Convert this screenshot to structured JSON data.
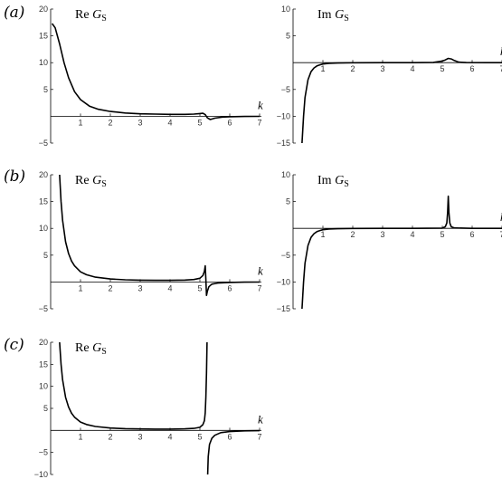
{
  "rows": [
    {
      "label": "(a)"
    },
    {
      "label": "(b)"
    },
    {
      "label": "(c)"
    }
  ],
  "title_parts": {
    "re": {
      "prefix": "Re",
      "symbol": "G",
      "sub": "S"
    },
    "im": {
      "prefix": "Im",
      "symbol": "G",
      "sub": "S"
    }
  },
  "chart_data": [
    {
      "id": "a-re",
      "row": 0,
      "col": 0,
      "type": "line",
      "title": "Re G_S",
      "xlabel": "k",
      "xlim": [
        0,
        7
      ],
      "ylim": [
        -5,
        20
      ],
      "xticks": [
        1,
        2,
        3,
        4,
        5,
        6,
        7
      ],
      "yticks": [
        20,
        15,
        10,
        5,
        -5
      ],
      "x": [
        0.05,
        0.15,
        0.3,
        0.45,
        0.6,
        0.8,
        1.0,
        1.3,
        1.6,
        2.0,
        2.5,
        3.0,
        3.5,
        4.0,
        4.5,
        4.8,
        5.0,
        5.1,
        5.18,
        5.25,
        5.35,
        5.5,
        5.75,
        6.0,
        6.5,
        7.0
      ],
      "y": [
        17.3,
        16.5,
        13.5,
        10.0,
        7.2,
        4.6,
        3.1,
        1.9,
        1.3,
        0.9,
        0.6,
        0.45,
        0.4,
        0.35,
        0.35,
        0.4,
        0.5,
        0.55,
        0.3,
        -0.3,
        -0.6,
        -0.35,
        -0.15,
        -0.08,
        -0.04,
        -0.02
      ]
    },
    {
      "id": "a-im",
      "row": 0,
      "col": 1,
      "type": "line",
      "title": "Im G_S",
      "xlabel": "k",
      "xlim": [
        0,
        7
      ],
      "ylim": [
        -15,
        10
      ],
      "xticks": [
        1,
        2,
        3,
        4,
        5,
        6,
        7
      ],
      "yticks": [
        10,
        5,
        -5,
        -10,
        -15
      ],
      "x": [
        0.3,
        0.35,
        0.4,
        0.5,
        0.6,
        0.7,
        0.8,
        0.9,
        1.0,
        1.2,
        1.5,
        2.0,
        3.0,
        4.0,
        4.7,
        5.0,
        5.1,
        5.2,
        5.3,
        5.4,
        5.55,
        5.8,
        6.5,
        7.0
      ],
      "y": [
        -15.0,
        -10.0,
        -6.5,
        -3.2,
        -1.7,
        -1.0,
        -0.6,
        -0.4,
        -0.25,
        -0.12,
        -0.06,
        -0.02,
        0.0,
        0.0,
        0.05,
        0.3,
        0.5,
        0.8,
        0.7,
        0.4,
        0.1,
        0.02,
        0.0,
        0.0
      ]
    },
    {
      "id": "b-re",
      "row": 1,
      "col": 0,
      "type": "line",
      "title": "Re G_S",
      "xlabel": "k",
      "xlim": [
        0,
        7
      ],
      "ylim": [
        -5,
        20
      ],
      "xticks": [
        1,
        2,
        3,
        4,
        5,
        6,
        7
      ],
      "yticks": [
        20,
        15,
        10,
        5,
        -5
      ],
      "x": [
        0.3,
        0.35,
        0.4,
        0.5,
        0.6,
        0.7,
        0.8,
        1.0,
        1.2,
        1.5,
        2.0,
        2.5,
        3.0,
        3.5,
        4.0,
        4.5,
        4.8,
        5.0,
        5.1,
        5.15,
        5.18,
        5.2,
        5.22,
        5.25,
        5.3,
        5.4,
        5.6,
        6.0,
        6.5,
        7.0
      ],
      "y": [
        20.0,
        15.0,
        11.5,
        7.5,
        5.3,
        3.9,
        3.0,
        1.9,
        1.35,
        0.9,
        0.55,
        0.4,
        0.33,
        0.3,
        0.3,
        0.35,
        0.45,
        0.7,
        1.2,
        2.0,
        3.0,
        0.5,
        -2.5,
        -1.7,
        -0.9,
        -0.4,
        -0.2,
        -0.08,
        -0.04,
        -0.02
      ]
    },
    {
      "id": "b-im",
      "row": 1,
      "col": 1,
      "type": "line",
      "title": "Im G_S",
      "xlabel": "k",
      "xlim": [
        0,
        7
      ],
      "ylim": [
        -15,
        10
      ],
      "xticks": [
        1,
        2,
        3,
        4,
        5,
        6,
        7
      ],
      "yticks": [
        10,
        5,
        -5,
        -10,
        -15
      ],
      "x": [
        0.3,
        0.35,
        0.4,
        0.5,
        0.6,
        0.7,
        0.8,
        0.9,
        1.0,
        1.2,
        1.5,
        2.0,
        3.0,
        4.0,
        5.0,
        5.1,
        5.15,
        5.18,
        5.2,
        5.22,
        5.25,
        5.3,
        5.4,
        6.0,
        7.0
      ],
      "y": [
        -15.0,
        -10.0,
        -6.5,
        -3.2,
        -1.7,
        -1.0,
        -0.6,
        -0.4,
        -0.25,
        -0.12,
        -0.06,
        -0.02,
        0.0,
        0.0,
        0.05,
        0.3,
        1.0,
        3.0,
        6.0,
        3.0,
        1.0,
        0.3,
        0.08,
        0.0,
        0.0
      ]
    },
    {
      "id": "c-re",
      "row": 2,
      "col": 0,
      "type": "line",
      "title": "Re G_S",
      "xlabel": "k",
      "xlim": [
        0,
        7
      ],
      "ylim": [
        -10,
        20
      ],
      "xticks": [
        1,
        2,
        3,
        4,
        5,
        6,
        7
      ],
      "yticks": [
        20,
        15,
        10,
        5,
        -5,
        -10
      ],
      "x": [
        0.3,
        0.35,
        0.4,
        0.5,
        0.6,
        0.7,
        0.8,
        1.0,
        1.2,
        1.5,
        2.0,
        2.5,
        3.0,
        3.5,
        4.0,
        4.5,
        4.8,
        5.0,
        5.1,
        5.15,
        5.18,
        5.2,
        5.22,
        5.24,
        null,
        5.26,
        5.28,
        5.32,
        5.4,
        5.5,
        5.7,
        6.0,
        6.5,
        7.0
      ],
      "y": [
        20.0,
        15.0,
        11.5,
        7.5,
        5.3,
        3.9,
        3.0,
        1.9,
        1.35,
        0.9,
        0.55,
        0.4,
        0.33,
        0.3,
        0.3,
        0.35,
        0.45,
        0.7,
        1.3,
        2.2,
        4.0,
        7.5,
        13.0,
        20.0,
        null,
        -10.0,
        -6.0,
        -3.2,
        -1.8,
        -1.1,
        -0.5,
        -0.25,
        -0.1,
        -0.05
      ]
    }
  ]
}
